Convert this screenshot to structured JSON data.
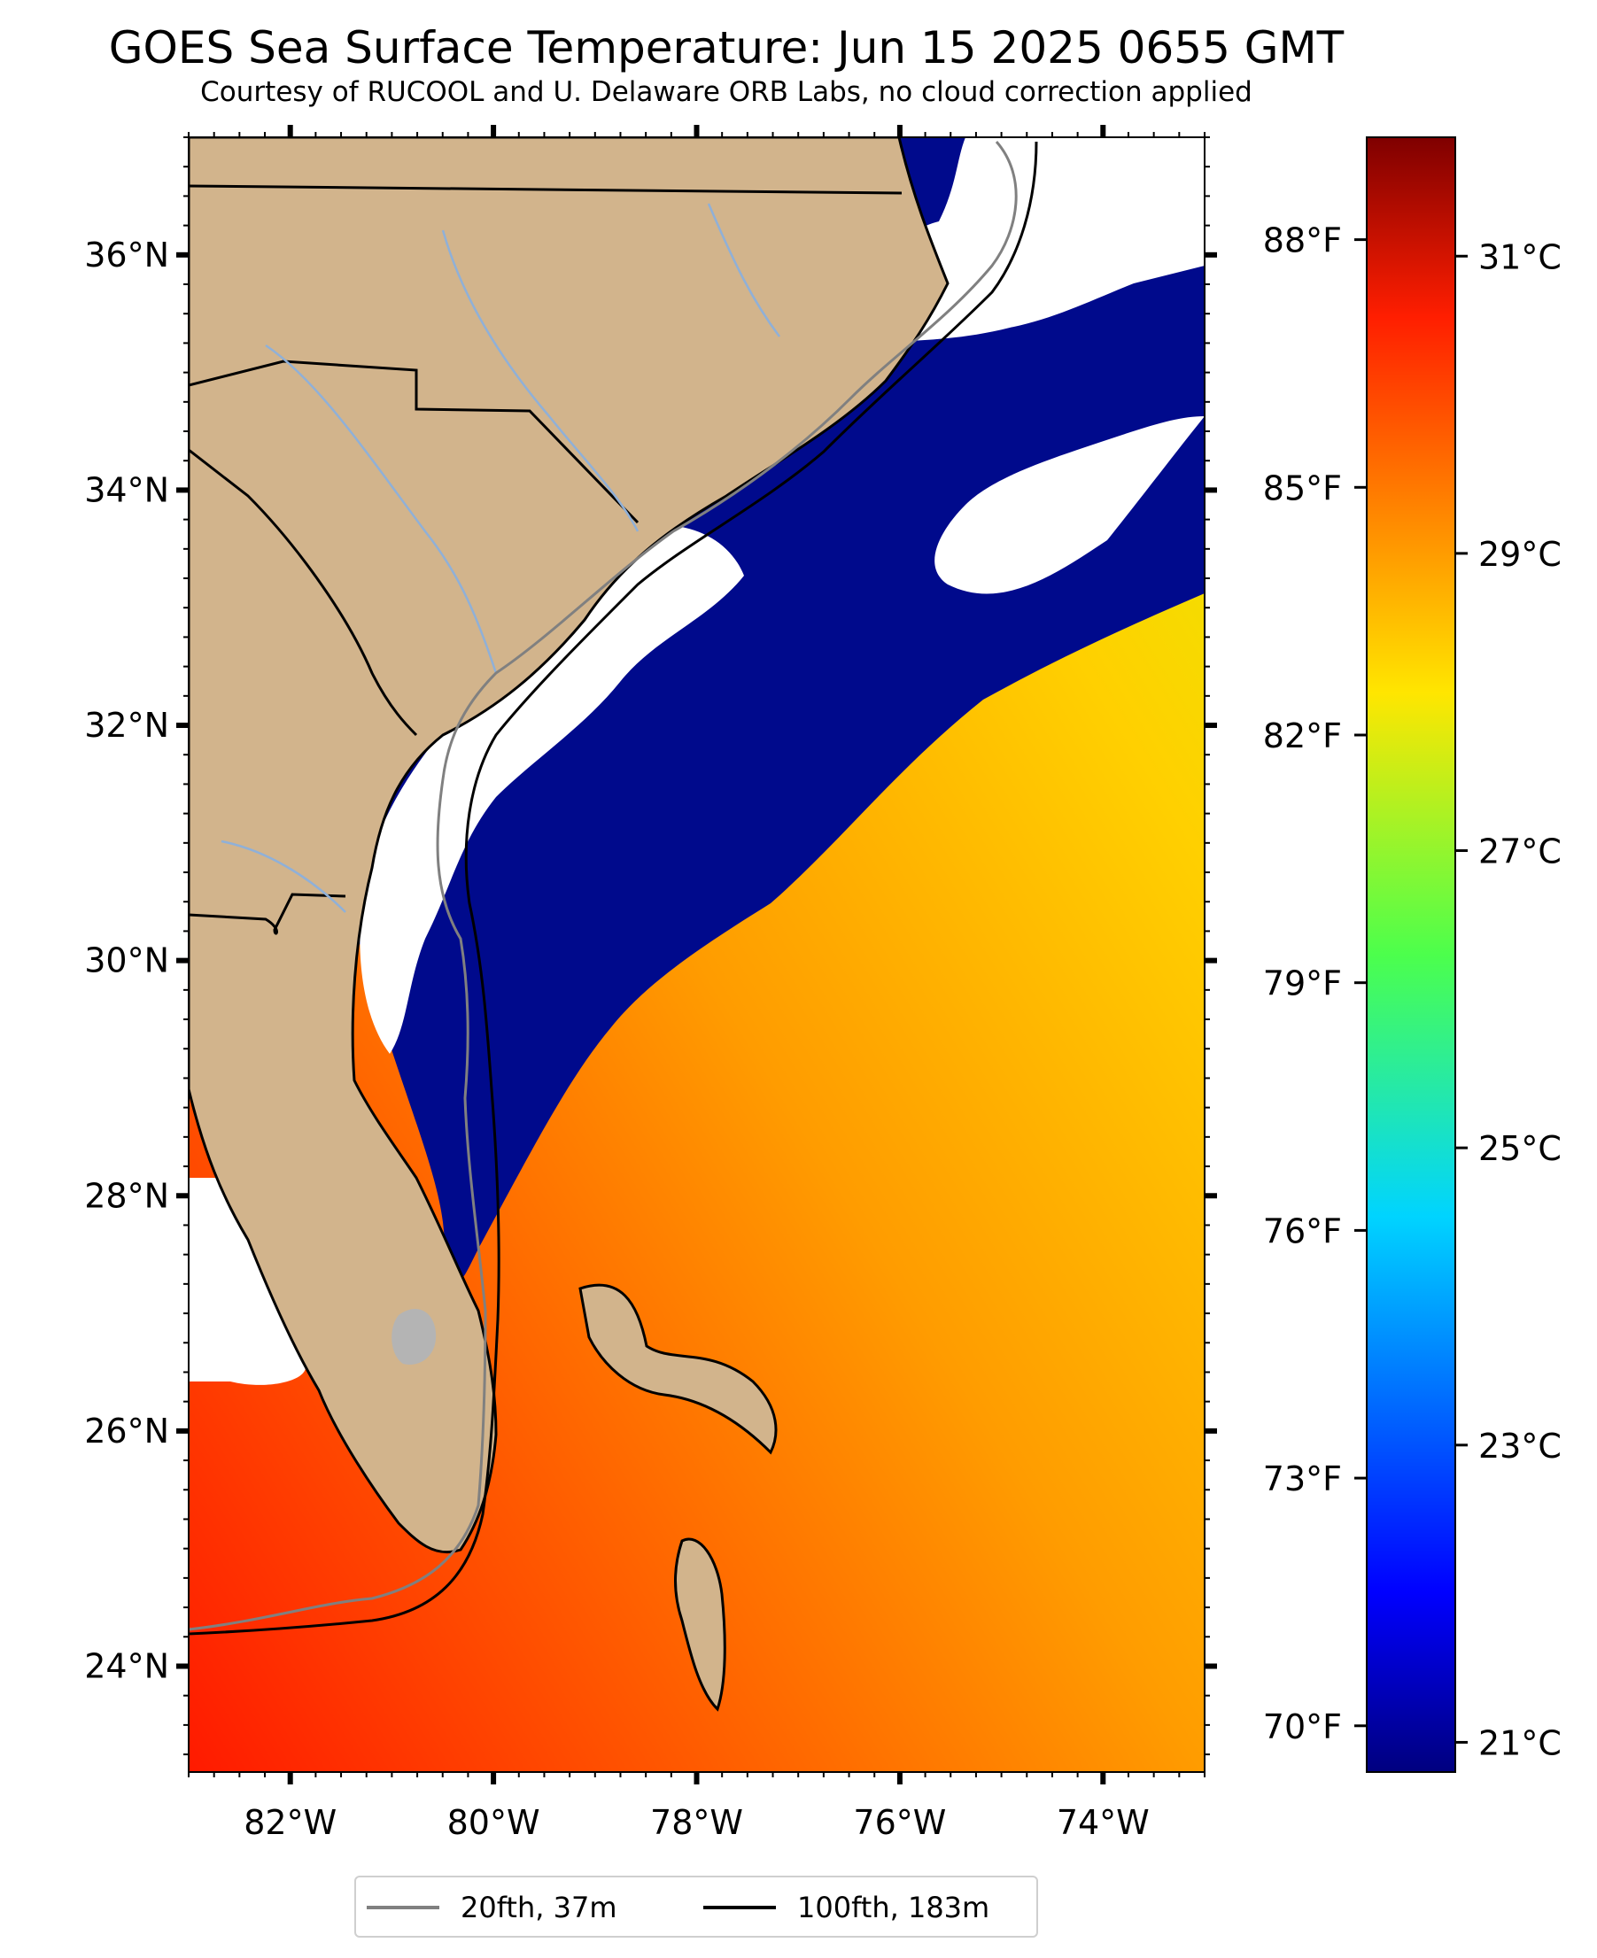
{
  "title": "GOES Sea Surface Temperature: Jun 15 2025 0655 GMT",
  "subtitle": "Courtesy of RUCOOL and U. Delaware ORB Labs, no cloud correction applied",
  "map": {
    "lon_range": [
      -83,
      -73
    ],
    "lat_range": [
      23.1,
      37.0
    ],
    "lon_ticks": [
      {
        "value": -82,
        "label": "82°W"
      },
      {
        "value": -80,
        "label": "80°W"
      },
      {
        "value": -78,
        "label": "78°W"
      },
      {
        "value": -76,
        "label": "76°W"
      },
      {
        "value": -74,
        "label": "74°W"
      }
    ],
    "lat_ticks": [
      {
        "value": 24,
        "label": "24°N"
      },
      {
        "value": 26,
        "label": "26°N"
      },
      {
        "value": 28,
        "label": "28°N"
      },
      {
        "value": 30,
        "label": "30°N"
      },
      {
        "value": 32,
        "label": "32°N"
      },
      {
        "value": 34,
        "label": "34°N"
      },
      {
        "value": 36,
        "label": "36°N"
      }
    ],
    "colors": {
      "land": "#d2b48c",
      "cloud": "#ffffff",
      "cold_water": "#000a8c",
      "coastline": "#000000",
      "rivers": "#8fb0d8",
      "lakes": "#b4b4b4"
    }
  },
  "colorbar": {
    "celsius_range": [
      20.8,
      31.8
    ],
    "celsius_ticks": [
      {
        "value": 21,
        "label": "21°C"
      },
      {
        "value": 23,
        "label": "23°C"
      },
      {
        "value": 25,
        "label": "25°C"
      },
      {
        "value": 27,
        "label": "27°C"
      },
      {
        "value": 29,
        "label": "29°C"
      },
      {
        "value": 31,
        "label": "31°C"
      }
    ],
    "fahrenheit_ticks": [
      {
        "value": 70,
        "label": "70°F"
      },
      {
        "value": 73,
        "label": "73°F"
      },
      {
        "value": 76,
        "label": "76°F"
      },
      {
        "value": 79,
        "label": "79°F"
      },
      {
        "value": 82,
        "label": "82°F"
      },
      {
        "value": 85,
        "label": "85°F"
      },
      {
        "value": 88,
        "label": "88°F"
      }
    ],
    "colormap": "jet"
  },
  "legend": {
    "items": [
      {
        "label": "20fth, 37m",
        "color": "#808080"
      },
      {
        "label": "100fth, 183m",
        "color": "#000000"
      }
    ]
  }
}
